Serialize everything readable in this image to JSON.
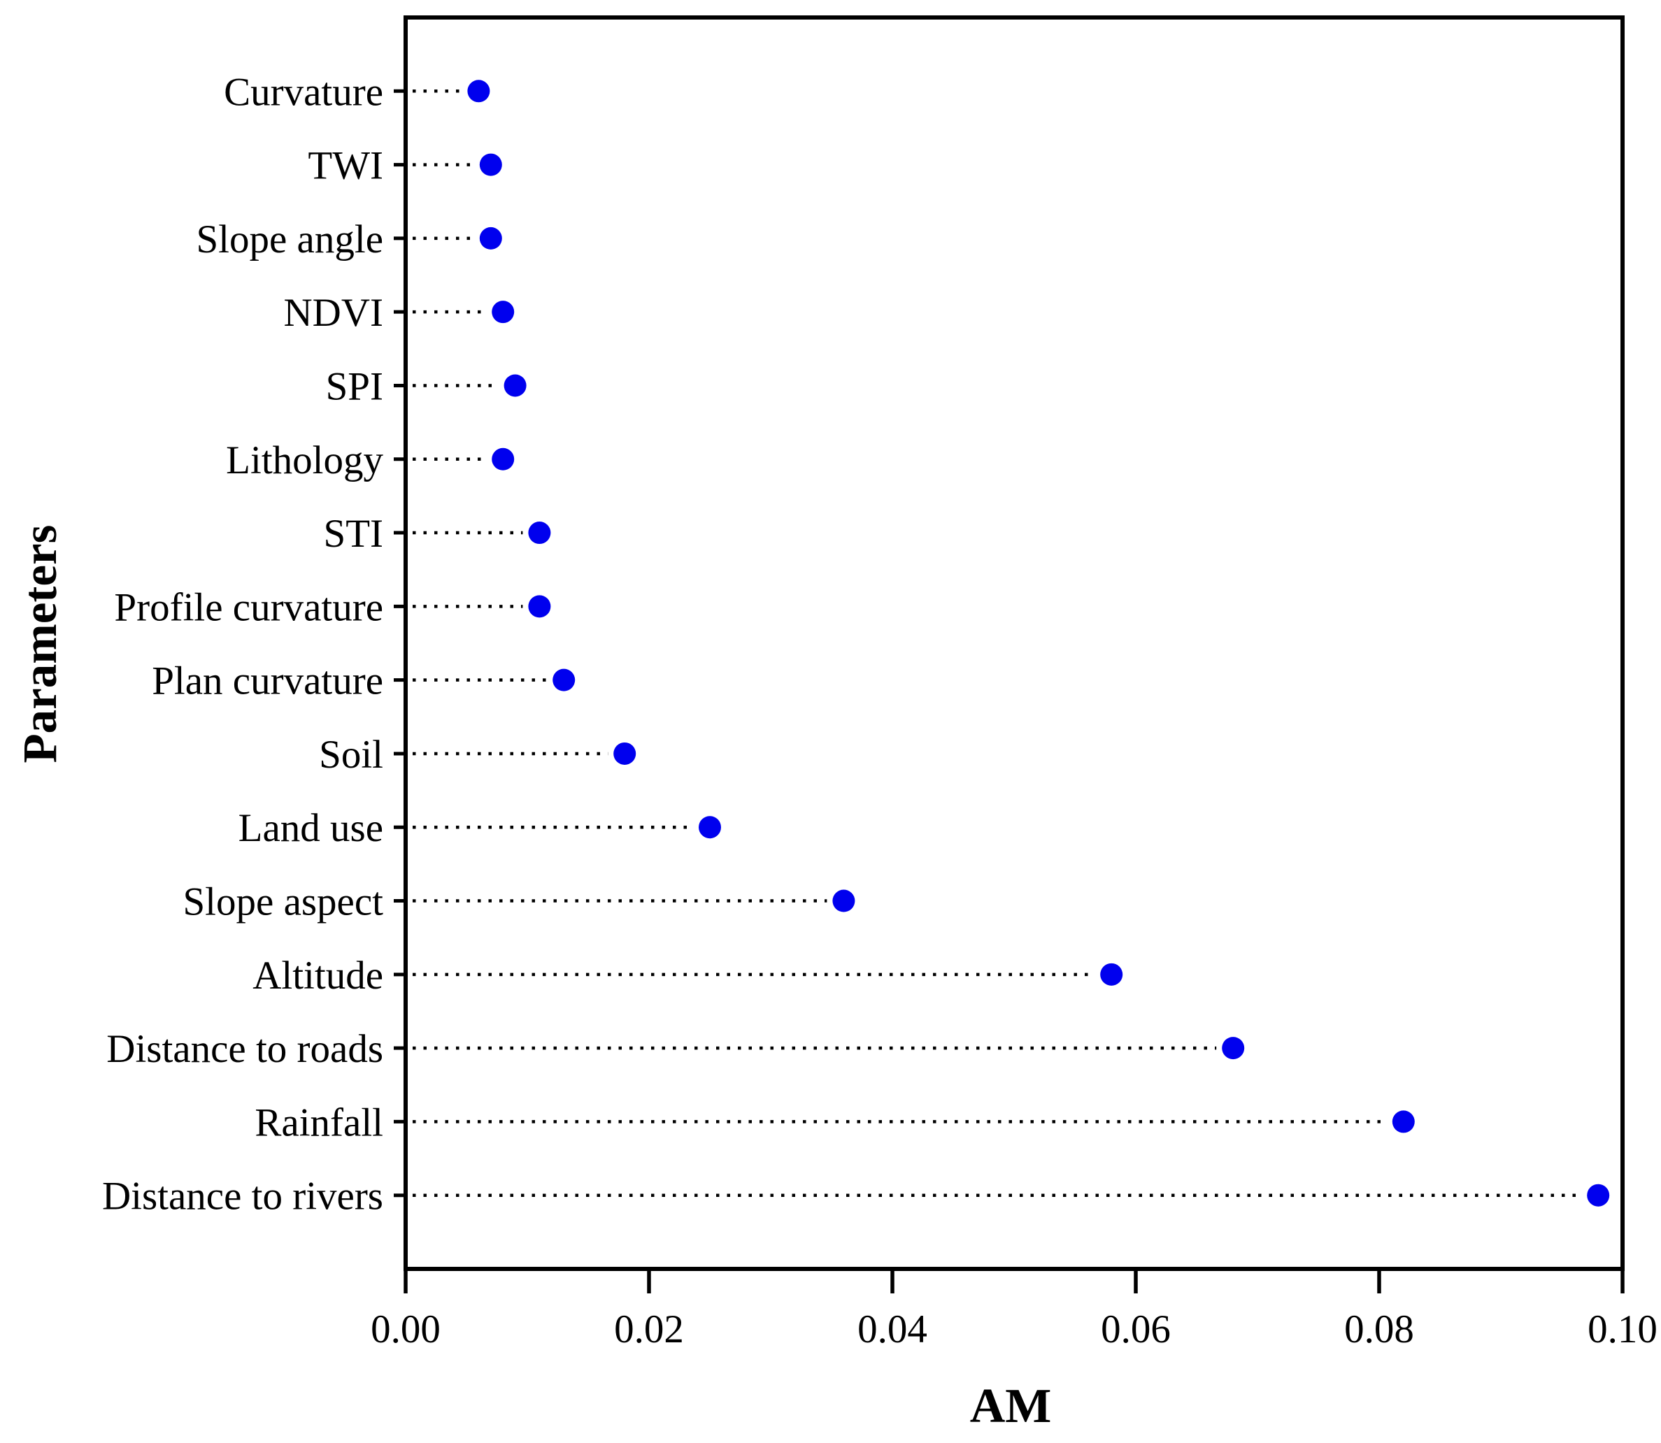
{
  "page": {
    "background": "#FFFFFF",
    "figure_type": "dot-plot"
  },
  "chart_data": {
    "type": "scatter",
    "subtype": "horizontal-dot-plot",
    "title": "",
    "xlabel": "AM",
    "ylabel": "Parameters",
    "xlim": [
      0.0,
      0.1
    ],
    "x_tick_values": [
      0.0,
      0.02,
      0.04,
      0.06,
      0.08,
      0.1
    ],
    "x_tick_labels": [
      "0.00",
      "0.02",
      "0.04",
      "0.06",
      "0.08",
      "0.10"
    ],
    "categories": [
      "Curvature",
      "TWI",
      "Slope angle",
      "NDVI",
      "SPI",
      "Lithology",
      "STI",
      "Profile curvature",
      "Plan curvature",
      "Soil",
      "Land use",
      "Slope aspect",
      "Altitude",
      "Distance to roads",
      "Rainfall",
      "Distance to rivers"
    ],
    "values": [
      0.006,
      0.007,
      0.007,
      0.008,
      0.009,
      0.008,
      0.011,
      0.011,
      0.013,
      0.018,
      0.025,
      0.036,
      0.058,
      0.068,
      0.082,
      0.098
    ],
    "marker": {
      "shape": "circle",
      "color": "#0000EE",
      "radius_px": 16
    },
    "leader_line": {
      "style": "dotted",
      "color": "#000000"
    },
    "axis_color": "#000000",
    "grid": false,
    "legend": null
  }
}
